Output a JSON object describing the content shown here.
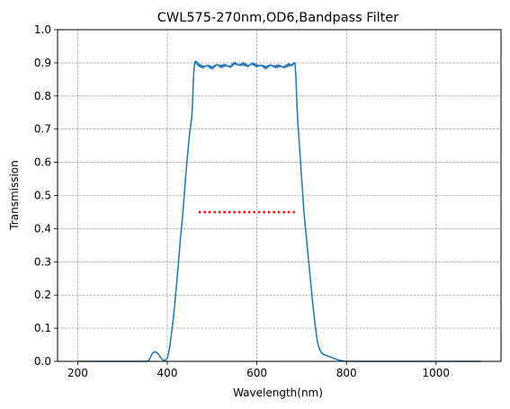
{
  "chart_data": {
    "type": "line",
    "title": "CWL575-270nm,OD6,Bandpass Filter",
    "xlabel": "Wavelength(nm)",
    "ylabel": "Transmission",
    "xlim": [
      155,
      1145
    ],
    "ylim": [
      0,
      1.0
    ],
    "xticks": [
      200,
      400,
      600,
      800,
      1000
    ],
    "yticks": [
      0.0,
      0.1,
      0.2,
      0.3,
      0.4,
      0.5,
      0.6,
      0.7,
      0.8,
      0.9,
      1.0
    ],
    "grid": true,
    "series": [
      {
        "color": "#1f77b4",
        "style": "solid",
        "x": [
          200,
          300,
          355,
          360,
          365,
          370,
          375,
          380,
          385,
          390,
          395,
          400,
          405,
          410,
          415,
          420,
          425,
          430,
          435,
          440,
          445,
          450,
          455,
          457,
          459,
          461,
          470,
          480,
          490,
          500,
          510,
          520,
          530,
          540,
          550,
          560,
          570,
          580,
          590,
          600,
          610,
          620,
          630,
          640,
          650,
          660,
          670,
          680,
          685,
          687,
          689,
          691,
          695,
          700,
          705,
          710,
          715,
          720,
          725,
          730,
          735,
          740,
          745,
          750,
          755,
          760,
          770,
          780,
          790,
          800,
          850,
          1000,
          1100
        ],
        "y": [
          0.0,
          0.0,
          0.0,
          0.005,
          0.02,
          0.028,
          0.028,
          0.022,
          0.012,
          0.004,
          0.003,
          0.01,
          0.04,
          0.09,
          0.15,
          0.22,
          0.3,
          0.38,
          0.45,
          0.54,
          0.62,
          0.69,
          0.74,
          0.8,
          0.87,
          0.9,
          0.895,
          0.89,
          0.895,
          0.887,
          0.897,
          0.89,
          0.893,
          0.886,
          0.897,
          0.89,
          0.894,
          0.888,
          0.896,
          0.89,
          0.893,
          0.887,
          0.896,
          0.891,
          0.894,
          0.889,
          0.895,
          0.893,
          0.9,
          0.86,
          0.79,
          0.73,
          0.65,
          0.55,
          0.45,
          0.38,
          0.31,
          0.24,
          0.17,
          0.11,
          0.06,
          0.035,
          0.025,
          0.02,
          0.018,
          0.015,
          0.01,
          0.005,
          0.002,
          0.0,
          0.0,
          0.0,
          0.0
        ]
      },
      {
        "color": "#ff0000",
        "style": "dotted",
        "x": [
          470,
          690
        ],
        "y": [
          0.45,
          0.45
        ]
      }
    ]
  }
}
